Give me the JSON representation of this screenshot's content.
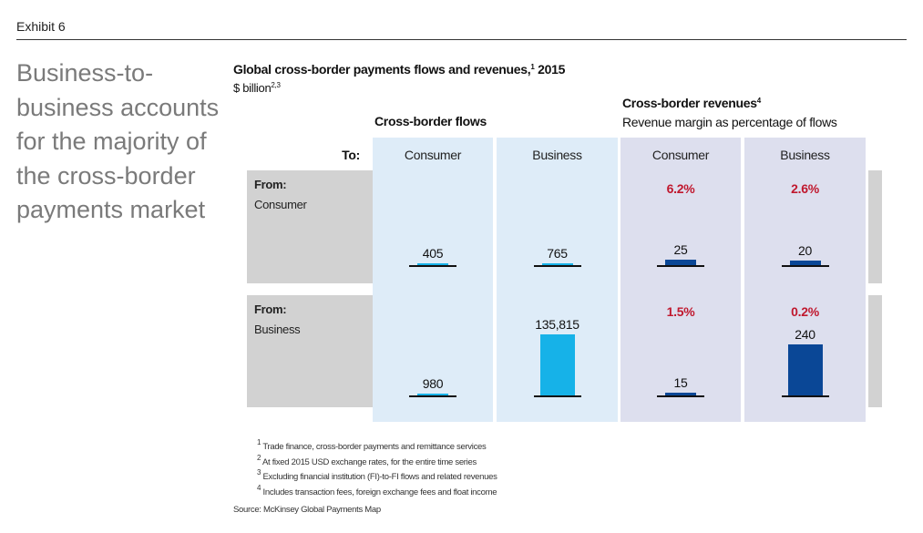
{
  "exhibit": "Exhibit 6",
  "headline": "Business-to-business accounts for the majority of the cross-border payments market",
  "chart_data": {
    "type": "bar",
    "title": "Global cross-border payments flows and revenues,",
    "title_sup": "1",
    "title_year": "2015",
    "unit": "$ billion",
    "unit_sup": "2,3",
    "flows_header": "Cross-border flows",
    "revenues_header": "Cross-border revenues",
    "revenues_sup": "4",
    "revenues_sub": "Revenue margin as percentage of flows",
    "to_label": "To:",
    "from_label": "From:",
    "columns": [
      "Consumer",
      "Business",
      "Consumer",
      "Business"
    ],
    "rows": [
      {
        "from": "Consumer",
        "flows": [
          405,
          765
        ],
        "revenues": [
          25,
          20
        ],
        "labels": [
          "405",
          "765",
          "25",
          "20"
        ],
        "margins": [
          "6.2%",
          "2.6%"
        ]
      },
      {
        "from": "Business",
        "flows": [
          980,
          135815
        ],
        "revenues": [
          15,
          240
        ],
        "labels": [
          "980",
          "135,815",
          "15",
          "240"
        ],
        "margins": [
          "1.5%",
          "0.2%"
        ]
      }
    ],
    "colors": {
      "flows": "#16b2e8",
      "revenues": "#0a4796",
      "margin": "#c0182e"
    }
  },
  "footnotes": [
    {
      "n": "1",
      "text": "Trade finance, cross-border payments and remittance services"
    },
    {
      "n": "2",
      "text": "At fixed 2015 USD exchange rates, for the entire time series"
    },
    {
      "n": "3",
      "text": "Excluding financial institution (FI)-to-FI flows and related revenues"
    },
    {
      "n": "4",
      "text": "Includes transaction fees, foreign exchange fees and float income"
    }
  ],
  "source": "Source: McKinsey Global Payments Map"
}
